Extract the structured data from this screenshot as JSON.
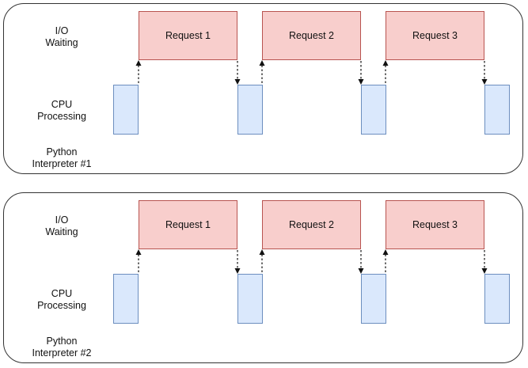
{
  "colors": {
    "request_fill": "#f8cecc",
    "request_stroke": "#b85450",
    "cpu_fill": "#dae8fc",
    "cpu_stroke": "#6c8ebf",
    "panel_border": "#333333",
    "arrow": "#111111"
  },
  "panels": [
    {
      "io_label_line1": "I/O",
      "io_label_line2": "Waiting",
      "cpu_label_line1": "CPU",
      "cpu_label_line2": "Processing",
      "interp_label_line1": "Python",
      "interp_label_line2": "Interpreter #1",
      "requests": [
        "Request 1",
        "Request 2",
        "Request 3"
      ]
    },
    {
      "io_label_line1": "I/O",
      "io_label_line2": "Waiting",
      "cpu_label_line1": "CPU",
      "cpu_label_line2": "Processing",
      "interp_label_line1": "Python",
      "interp_label_line2": "Interpreter #2",
      "requests": [
        "Request 1",
        "Request 2",
        "Request 3"
      ]
    }
  ]
}
